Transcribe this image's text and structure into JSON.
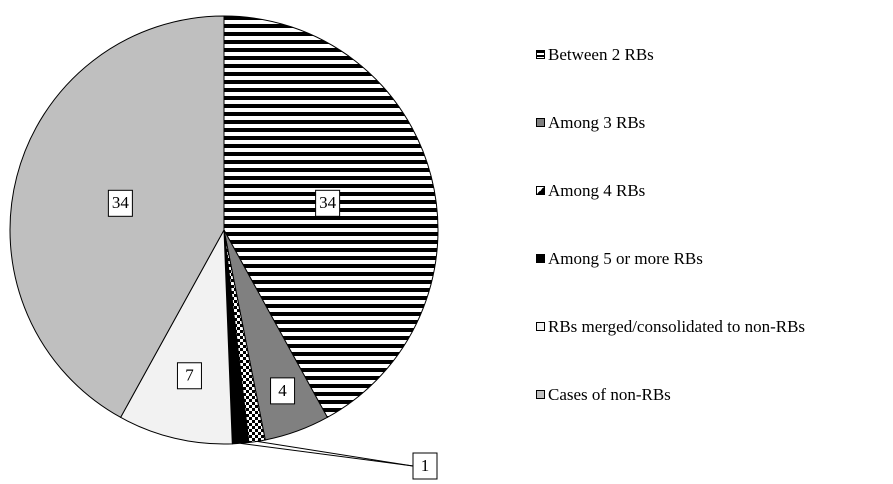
{
  "chart_data": {
    "type": "pie",
    "categories": [
      "Between 2 RBs",
      "Among 3 RBs",
      "Among 4 RBs",
      "Among 5 or more RBs",
      "RBs merged/consolidated to non-RBs",
      "Cases of non-RBs"
    ],
    "values": [
      34,
      4,
      1,
      1,
      7,
      34
    ],
    "fills": [
      "stripes",
      "#808080",
      "dots",
      "#000000",
      "#f2f2f2",
      "#bfbfbf"
    ],
    "legend": "right"
  }
}
